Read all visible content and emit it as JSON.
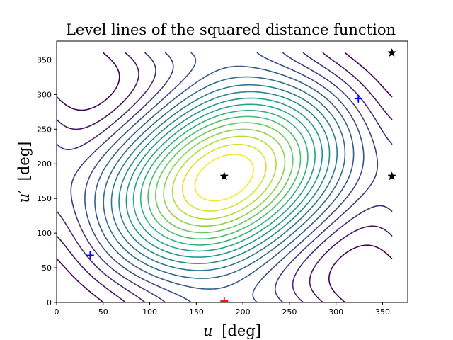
{
  "chart_data": {
    "type": "contour",
    "title": "Level lines of the squared distance function",
    "xlabel": {
      "symbol": "u",
      "unit": "[deg]"
    },
    "ylabel": {
      "symbol": "u′",
      "unit": "[deg]"
    },
    "xlim": [
      0,
      377
    ],
    "ylim": [
      0,
      377
    ],
    "xticks": [
      0,
      50,
      100,
      150,
      200,
      250,
      300,
      350
    ],
    "yticks": [
      0,
      50,
      100,
      150,
      200,
      250,
      300,
      350
    ],
    "data_domain": {
      "u": [
        0,
        360
      ],
      "u_prime": [
        0,
        360
      ]
    },
    "grid": false,
    "colormap": "viridis",
    "colormap_stops": [
      "#440154",
      "#472c7a",
      "#3b518b",
      "#2c718e",
      "#21908d",
      "#27ad81",
      "#5cc863",
      "#aadc32",
      "#fde725"
    ],
    "contour_levels": 18,
    "markers": [
      {
        "symbol": "plus",
        "color": "#0000ff",
        "u": 36,
        "u_prime": 68
      },
      {
        "symbol": "plus",
        "color": "#0000ff",
        "u": 324,
        "u_prime": 294
      },
      {
        "symbol": "plus",
        "color": "#ff0000",
        "u": 180,
        "u_prime": 2
      },
      {
        "symbol": "star",
        "color": "#000000",
        "u": 180,
        "u_prime": 182
      },
      {
        "symbol": "star",
        "color": "#000000",
        "u": 360,
        "u_prime": 182
      },
      {
        "symbol": "star",
        "color": "#000000",
        "u": 360,
        "u_prime": 360
      }
    ]
  }
}
